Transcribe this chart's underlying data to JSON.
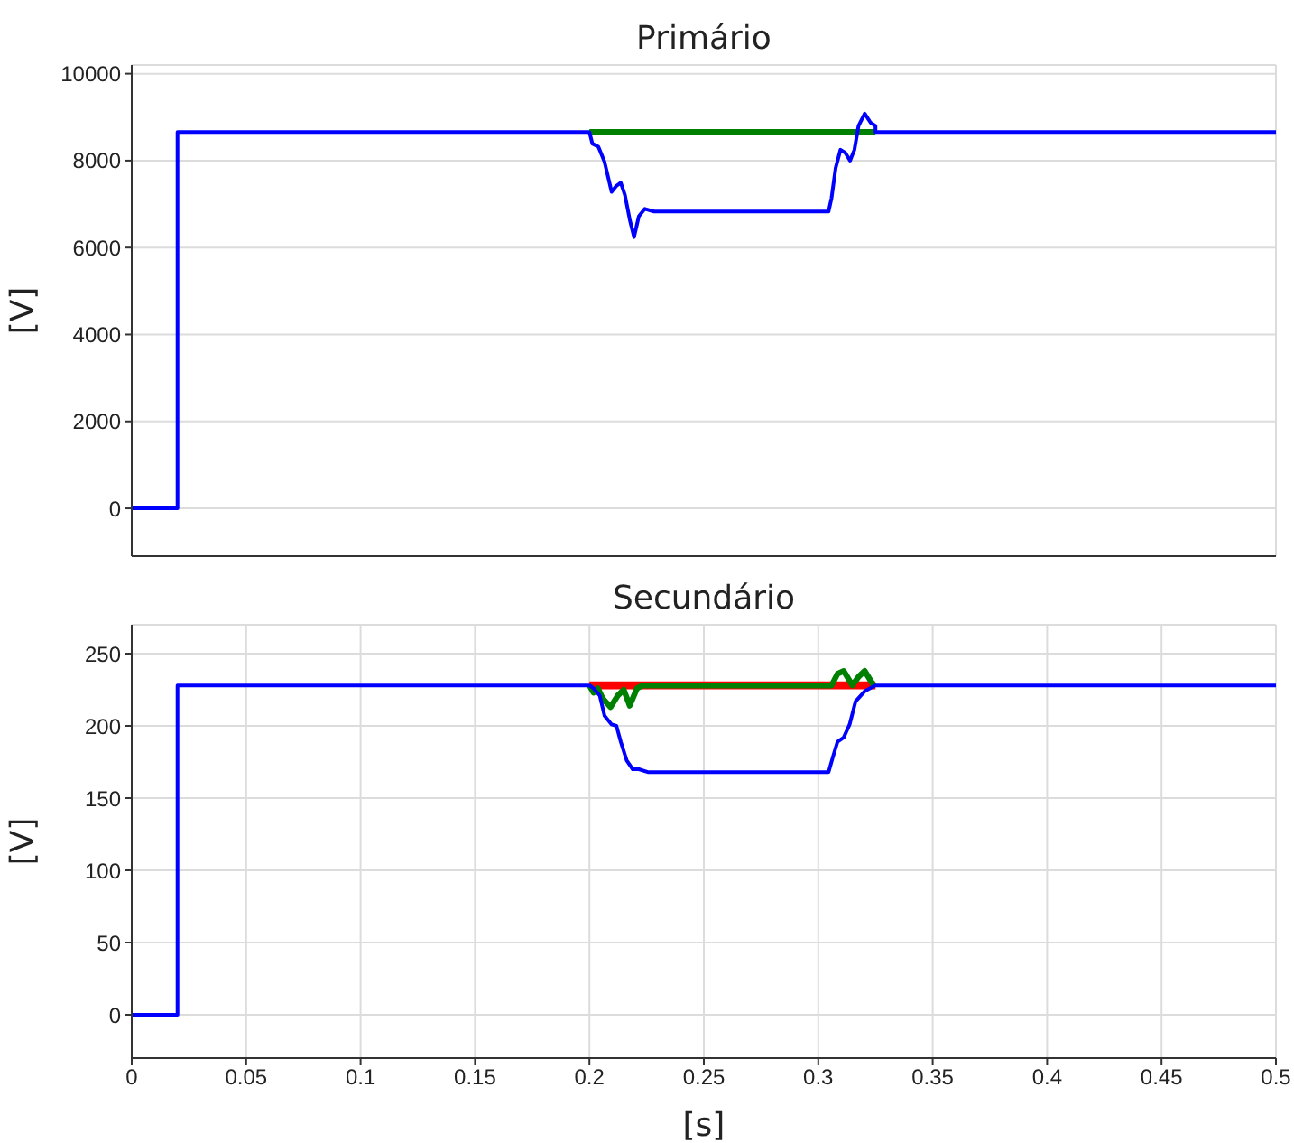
{
  "chart_data": [
    {
      "type": "line",
      "title": "Primário",
      "ylabel": "[V]",
      "xlim": [
        0,
        0.5
      ],
      "xticks": [
        0,
        0.05,
        0.1,
        0.15,
        0.2,
        0.25,
        0.3,
        0.35,
        0.4,
        0.45,
        0.5
      ],
      "ylim": [
        -1100,
        10200
      ],
      "yticks": [
        0,
        2000,
        4000,
        6000,
        8000,
        10000
      ],
      "grid": true,
      "tick_labels": "y",
      "series": [
        {
          "color": "#008000",
          "x": [
            0.2,
            0.325
          ],
          "values": [
            8660,
            8660
          ]
        },
        {
          "color": "#0000ff",
          "x": [
            0,
            0.02,
            0.02,
            0.2,
            0.2013,
            0.2039,
            0.2066,
            0.2097,
            0.2118,
            0.2137,
            0.2155,
            0.2176,
            0.2195,
            0.2216,
            0.2242,
            0.2282,
            0.3045,
            0.3058,
            0.3076,
            0.3097,
            0.3118,
            0.3139,
            0.3158,
            0.3176,
            0.3203,
            0.3229,
            0.325,
            0.325,
            0.5
          ],
          "values": [
            0,
            0,
            8660,
            8660,
            8390,
            8320,
            7970,
            7280,
            7420,
            7490,
            7210,
            6650,
            6240,
            6720,
            6890,
            6830,
            6830,
            7140,
            7830,
            8250,
            8180,
            8000,
            8250,
            8800,
            9080,
            8870,
            8800,
            8660,
            8660
          ]
        }
      ]
    },
    {
      "type": "line",
      "title": "Secundário",
      "ylabel": "[V]",
      "xlabel": "[s]",
      "xlim": [
        0,
        0.5
      ],
      "xticks": [
        0,
        0.05,
        0.1,
        0.15,
        0.2,
        0.25,
        0.3,
        0.35,
        0.4,
        0.45,
        0.5
      ],
      "ylim": [
        -30,
        270
      ],
      "yticks": [
        0,
        50,
        100,
        150,
        200,
        250
      ],
      "grid": true,
      "series": [
        {
          "color": "#ff0000",
          "x": [
            0.2,
            0.325
          ],
          "values": [
            228,
            228
          ]
        },
        {
          "color": "#008000",
          "x": [
            0.2,
            0.2018,
            0.2037,
            0.2058,
            0.2092,
            0.2124,
            0.215,
            0.2176,
            0.2208,
            0.2234,
            0.3058,
            0.3084,
            0.3111,
            0.3149,
            0.3176,
            0.3203,
            0.3242
          ],
          "values": [
            228,
            223,
            226,
            219,
            213,
            221,
            225,
            214,
            226,
            228,
            228,
            236,
            238,
            228,
            234,
            238,
            228
          ]
        },
        {
          "color": "#0000ff",
          "x": [
            0,
            0.02,
            0.02,
            0.2,
            0.2018,
            0.2045,
            0.2066,
            0.2097,
            0.2118,
            0.2137,
            0.2163,
            0.2189,
            0.2216,
            0.2255,
            0.3045,
            0.3063,
            0.3084,
            0.3111,
            0.3137,
            0.3163,
            0.3203,
            0.325,
            0.5
          ],
          "values": [
            0,
            0,
            228,
            228,
            226,
            221,
            207,
            201,
            200,
            189,
            176,
            170,
            170,
            168,
            168,
            178,
            189,
            192,
            201,
            217,
            224,
            228,
            228
          ]
        }
      ]
    }
  ]
}
